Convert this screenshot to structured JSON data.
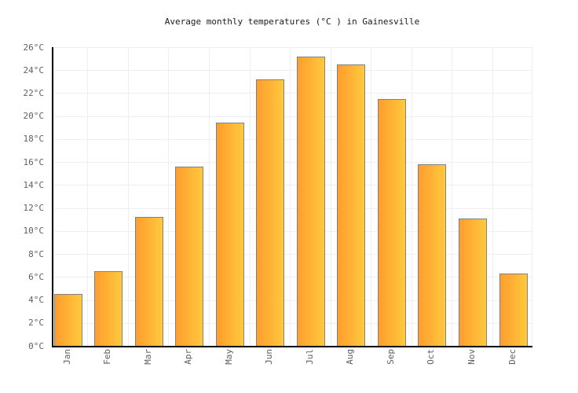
{
  "title": "Average monthly temperatures (°C ) in Gainesville",
  "chart_data": {
    "type": "bar",
    "categories": [
      "Jan",
      "Feb",
      "Mar",
      "Apr",
      "May",
      "Jun",
      "Jul",
      "Aug",
      "Sep",
      "Oct",
      "Nov",
      "Dec"
    ],
    "values": [
      4.5,
      6.5,
      11.2,
      15.6,
      19.4,
      23.2,
      25.2,
      24.5,
      21.5,
      15.8,
      11.1,
      6.3
    ],
    "unit": "°C",
    "ylim": [
      0,
      26
    ],
    "ytick_step": 2,
    "yticks": [
      {
        "value": 0,
        "label": "0°C"
      },
      {
        "value": 2,
        "label": "2°C"
      },
      {
        "value": 4,
        "label": "4°C"
      },
      {
        "value": 6,
        "label": "6°C"
      },
      {
        "value": 8,
        "label": "8°C"
      },
      {
        "value": 10,
        "label": "10°C"
      },
      {
        "value": 12,
        "label": "12°C"
      },
      {
        "value": 14,
        "label": "14°C"
      },
      {
        "value": 16,
        "label": "16°C"
      },
      {
        "value": 18,
        "label": "18°C"
      },
      {
        "value": 20,
        "label": "20°C"
      },
      {
        "value": 22,
        "label": "22°C"
      },
      {
        "value": 24,
        "label": "24°C"
      },
      {
        "value": 26,
        "label": "26°C"
      }
    ],
    "grid": true,
    "legend": "none",
    "colors": {
      "bar_gradient_left": "#ff9d2e",
      "bar_gradient_right": "#ffc93d",
      "bar_border": "#818181",
      "gridline": "#eeeeee",
      "axis": "#000000",
      "tick_label": "#5f5f5f",
      "title": "#1a1a1a",
      "background": "#ffffff"
    }
  }
}
